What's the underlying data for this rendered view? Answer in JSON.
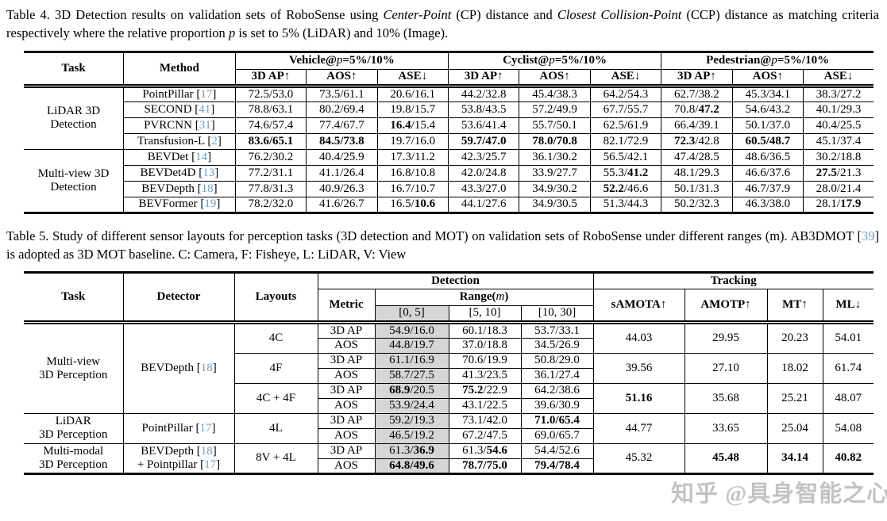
{
  "watermark": {
    "text": "知乎 @具身智能之心"
  },
  "colors": {
    "citation": "#6d9ec6",
    "shaded_column": "#d6d6d6",
    "watermark_gray": "#b5b5b5"
  },
  "table4": {
    "caption_segments": [
      {
        "t": "Table 4.  3D Detection results on validation sets of RoboSense using "
      },
      {
        "t": "Center-Point",
        "i": true
      },
      {
        "t": " (CP) distance and "
      },
      {
        "t": "Closest Collision-Point",
        "i": true
      },
      {
        "t": " (CCP) distance as matching criteria respectively where the relative proportion "
      },
      {
        "t": "p",
        "i": true
      },
      {
        "t": " is set to 5% (LiDAR) and 10% (Image)."
      }
    ],
    "header": {
      "task": "Task",
      "method": "Method",
      "groups": [
        {
          "prefix": "Vehicle@",
          "math": "p",
          "suffix": "=5%/10%"
        },
        {
          "prefix": "Cyclist@",
          "math": "p",
          "suffix": "=5%/10%"
        },
        {
          "prefix": "Pedestrian@",
          "math": "p",
          "suffix": "=5%/10%"
        }
      ],
      "subcols": [
        "3D AP↑",
        "AOS↑",
        "ASE↓"
      ]
    },
    "groups": [
      {
        "task": [
          "LiDAR 3D",
          "Detection"
        ],
        "rows": [
          {
            "method": {
              "name": "PointPillar",
              "cite": "17"
            },
            "values": [
              "72.5/53.0",
              "73.5/61.1",
              "20.6/16.1",
              "44.2/32.8",
              "45.4/38.3",
              "64.2/54.3",
              "62.7/38.2",
              "45.3/34.1",
              "38.3/27.2"
            ]
          },
          {
            "method": {
              "name": "SECOND",
              "cite": "41"
            },
            "values": [
              "78.8/63.1",
              "80.2/69.4",
              "19.8/15.7",
              "53.8/43.5",
              "57.2/49.9",
              "67.7/55.7",
              "70.8/**47.2**",
              "54.6/43.2",
              "40.1/29.3"
            ]
          },
          {
            "method": {
              "name": "PVRCNN",
              "cite": "31"
            },
            "values": [
              "74.6/57.4",
              "77.4/67.7",
              "**16.4**/15.4",
              "53.6/41.4",
              "55.7/50.1",
              "62.5/61.9",
              "66.4/39.1",
              "50.1/37.0",
              "40.4/25.5"
            ]
          },
          {
            "method": {
              "name": "Transfusion-L",
              "cite": "2"
            },
            "values": [
              "**83.6/65.1**",
              "**84.5/73.8**",
              "19.7/16.0",
              "**59.7/47.0**",
              "**78.0/70.8**",
              "82.1/72.9",
              "**72.3**/42.8",
              "**60.5/48.7**",
              "45.1/37.4"
            ]
          }
        ]
      },
      {
        "task": [
          "Multi-view 3D",
          "Detection"
        ],
        "rows": [
          {
            "method": {
              "name": "BEVDet",
              "cite": "14"
            },
            "values": [
              "76.2/30.2",
              "40.4/25.9",
              "17.3/11.2",
              "42.3/25.7",
              "36.1/30.2",
              "56.5/42.1",
              "47.4/28.5",
              "48.6/36.5",
              "30.2/18.8"
            ]
          },
          {
            "method": {
              "name": "BEVDet4D",
              "cite": "13"
            },
            "values": [
              "77.2/31.1",
              "41.1/26.4",
              "16.8/10.8",
              "42.0/24.8",
              "33.9/27.7",
              "55.3/**41.2**",
              "48.1/29.3",
              "46.6/37.6",
              "**27.5**/21.3"
            ]
          },
          {
            "method": {
              "name": "BEVDepth",
              "cite": "18"
            },
            "values": [
              "77.8/31.3",
              "40.9/26.3",
              "16.7/10.7",
              "43.3/27.0",
              "34.9/30.2",
              "**52.2**/46.6",
              "50.1/31.3",
              "46.7/37.9",
              "28.0/21.4"
            ]
          },
          {
            "method": {
              "name": "BEVFormer",
              "cite": "19"
            },
            "values": [
              "78.2/32.0",
              "41.6/26.7",
              "16.5/**10.6**",
              "44.1/27.6",
              "34.9/30.5",
              "51.3/44.3",
              "50.2/32.3",
              "46.3/38.0",
              "28.1/**17.9**"
            ]
          }
        ]
      }
    ]
  },
  "table5": {
    "caption_segments": [
      {
        "t": "Table 5.  Study of different sensor layouts for perception tasks (3D detection and MOT) on validation sets of RoboSense under different ranges (m). AB3DMOT "
      },
      {
        "cite": "39"
      },
      {
        "t": " is adopted as 3D MOT baseline. C: Camera, F: Fisheye, L: LiDAR, V: View"
      }
    ],
    "header": {
      "task": "Task",
      "detector": "Detector",
      "layouts": "Layouts",
      "metric": "Metric",
      "detection": "Detection",
      "tracking": "Tracking",
      "range": {
        "prefix": "Range(",
        "math": "m",
        "suffix": ")"
      },
      "ranges": [
        "[0, 5]",
        "[5, 10]",
        "[10, 30]"
      ],
      "tracking_cols": [
        "sAMOTA↑",
        "AMOTP↑",
        "MT↑",
        "ML↓"
      ]
    },
    "groups": [
      {
        "task": [
          "Multi-view",
          "3D Perception"
        ],
        "detector": [
          {
            "name": "BEVDepth",
            "cite": "18"
          }
        ],
        "layouts": [
          {
            "label": "4C",
            "metrics": [
              {
                "metric": "3D AP",
                "det": [
                  "54.9/16.0",
                  "60.1/18.3",
                  "53.7/33.1"
                ]
              },
              {
                "metric": "AOS",
                "det": [
                  "44.8/19.7",
                  "37.0/18.8",
                  "34.5/26.9"
                ]
              }
            ],
            "tracking": [
              "44.03",
              "29.95",
              "20.23",
              "54.01"
            ]
          },
          {
            "label": "4F",
            "metrics": [
              {
                "metric": "3D AP",
                "det": [
                  "61.1/16.9",
                  "70.6/19.9",
                  "50.8/29.0"
                ]
              },
              {
                "metric": "AOS",
                "det": [
                  "58.7/27.5",
                  "41.3/23.5",
                  "36.1/27.4"
                ]
              }
            ],
            "tracking": [
              "39.56",
              "27.10",
              "18.02",
              "61.74"
            ]
          },
          {
            "label": "4C + 4F",
            "metrics": [
              {
                "metric": "3D AP",
                "det": [
                  "**68.9**/20.5",
                  "**75.2**/22.9",
                  "64.2/38.6"
                ]
              },
              {
                "metric": "AOS",
                "det": [
                  "53.9/24.4",
                  "43.1/22.5",
                  "39.6/30.9"
                ]
              }
            ],
            "tracking": [
              "**51.16**",
              "35.68",
              "25.21",
              "48.07"
            ]
          }
        ]
      },
      {
        "task": [
          "LiDAR",
          "3D Perception"
        ],
        "detector": [
          {
            "name": "PointPillar",
            "cite": "17"
          }
        ],
        "layouts": [
          {
            "label": "4L",
            "metrics": [
              {
                "metric": "3D AP",
                "det": [
                  "59.2/19.3",
                  "73.1/42.0",
                  "**71.0/65.4**"
                ]
              },
              {
                "metric": "AOS",
                "det": [
                  "46.5/19.2",
                  "67.2/47.5",
                  "69.0/65.7"
                ]
              }
            ],
            "tracking": [
              "44.77",
              "33.65",
              "25.04",
              "54.08"
            ]
          }
        ]
      },
      {
        "task": [
          "Multi-modal",
          "3D Perception"
        ],
        "detector": [
          {
            "name": "BEVDepth",
            "cite": "18"
          },
          {
            "name": "+ Pointpillar",
            "cite": "17"
          }
        ],
        "layouts": [
          {
            "label": "8V + 4L",
            "metrics": [
              {
                "metric": "3D AP",
                "det": [
                  "61.3/**36.9**",
                  "61.3/**54.6**",
                  "54.4/52.6"
                ]
              },
              {
                "metric": "AOS",
                "det": [
                  "**64.8/49.6**",
                  "**78.7/75.0**",
                  "**79.4/78.4**"
                ]
              }
            ],
            "tracking": [
              "45.32",
              "**45.48**",
              "**34.14**",
              "**40.82**"
            ]
          }
        ]
      }
    ]
  }
}
